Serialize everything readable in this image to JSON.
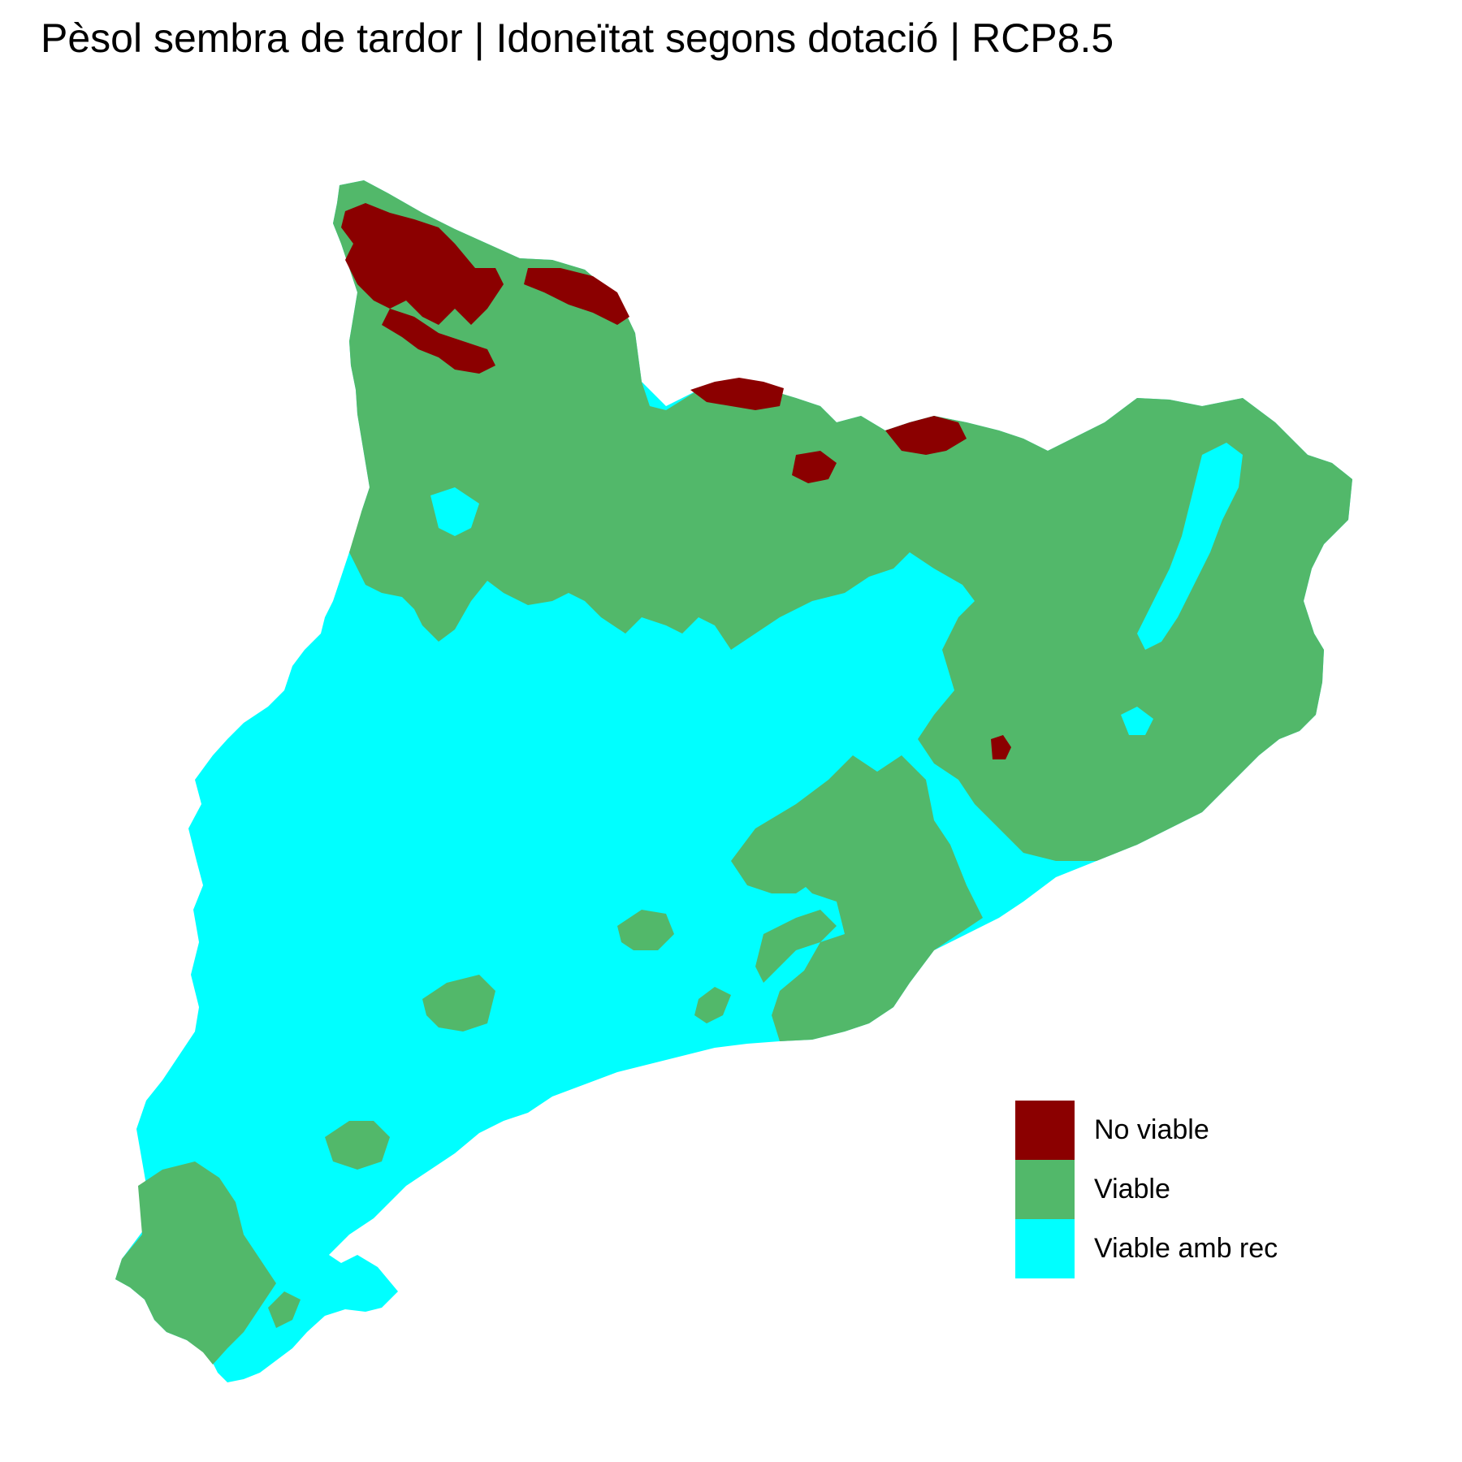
{
  "map": {
    "title": "Pèsol sembra de tardor | Idoneïtat segons dotació | RCP8.5"
  },
  "legend": {
    "items": [
      {
        "label": "No viable",
        "color": "#8b0000"
      },
      {
        "label": "Viable",
        "color": "#52b86a"
      },
      {
        "label": "Viable amb rec",
        "color": "#00ffff"
      }
    ]
  },
  "colors": {
    "no_viable": "#8b0000",
    "viable": "#52b86a",
    "viable_amb_rec": "#00ffff",
    "background": "#ffffff"
  }
}
